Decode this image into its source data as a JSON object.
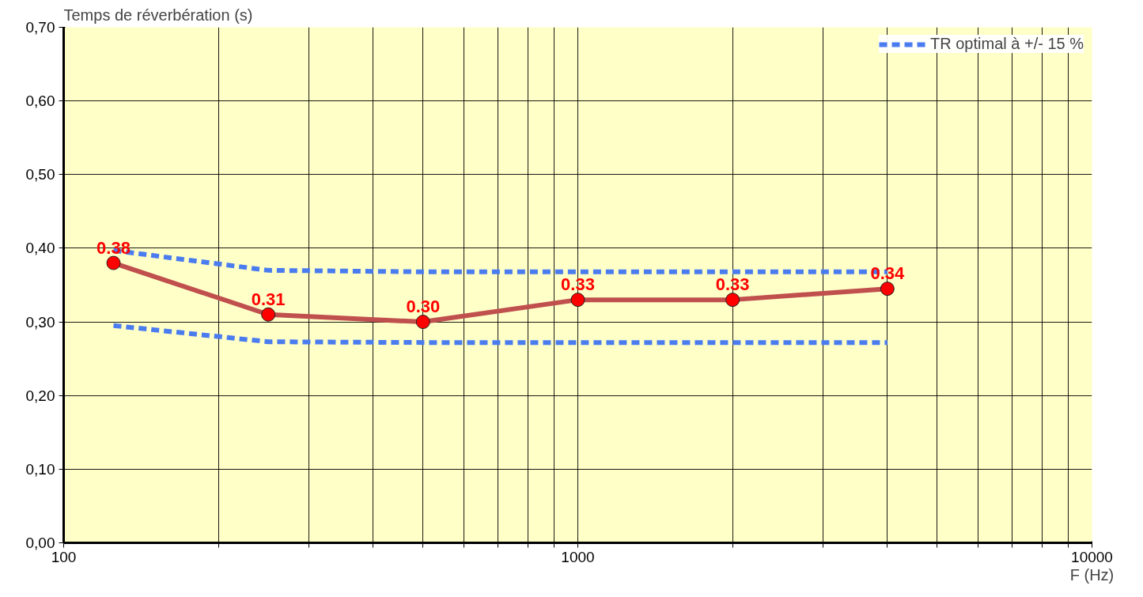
{
  "chart_data": {
    "type": "line",
    "xlabel": "F (Hz)",
    "ylabel": "Temps de réverbération (s)",
    "log": "x",
    "grid": true,
    "legend": "top right",
    "xlim": [
      100,
      10000
    ],
    "ylim": [
      0,
      0.7
    ],
    "xticks": [
      100,
      {
        "value": 200,
        "label": null
      },
      {
        "value": 300,
        "label": null
      },
      {
        "value": 400,
        "label": null
      },
      {
        "value": 500,
        "label": null
      },
      {
        "value": 600,
        "label": null
      },
      {
        "value": 700,
        "label": null
      },
      {
        "value": 800,
        "label": null
      },
      {
        "value": 900,
        "label": null
      },
      1000,
      {
        "value": 2000,
        "label": null
      },
      {
        "value": 3000,
        "label": null
      },
      {
        "value": 4000,
        "label": null
      },
      {
        "value": 5000,
        "label": null
      },
      {
        "value": 6000,
        "label": null
      },
      {
        "value": 7000,
        "label": null
      },
      {
        "value": 8000,
        "label": null
      },
      {
        "value": 9000,
        "label": null
      },
      10000
    ],
    "yticks": [
      {
        "value": 0,
        "label": "0,00"
      },
      {
        "value": 0.1,
        "label": "0,10"
      },
      {
        "value": 0.2,
        "label": "0,20"
      },
      {
        "value": 0.3,
        "label": "0,30"
      },
      {
        "value": 0.4,
        "label": "0,40"
      },
      {
        "value": 0.5,
        "label": "0,50"
      },
      {
        "value": 0.6,
        "label": "0,60"
      },
      {
        "value": 0.7,
        "label": "0,70"
      }
    ],
    "series": [
      {
        "color": "#c0504d",
        "marker": "circle",
        "x": [
          125,
          250,
          500,
          1000,
          2000,
          4000
        ],
        "values": [
          0.38,
          0.31,
          0.3,
          0.33,
          0.33,
          0.345
        ],
        "value_labels": [
          "0.38",
          "0.31",
          "0.30",
          "0.33",
          "0.33",
          "0.34"
        ]
      },
      {
        "name": "TR optimal à +/- 15 %",
        "color": "#4a7cf0",
        "line_style": "dashed",
        "x": [
          125,
          250,
          500,
          1000,
          2000,
          4000
        ],
        "values": [
          0.397,
          0.37,
          0.368,
          0.368,
          0.368,
          0.368
        ]
      },
      {
        "color": "#4a7cf0",
        "line_style": "dashed",
        "x": [
          125,
          250,
          500,
          1000,
          2000,
          4000
        ],
        "values": [
          0.295,
          0.273,
          0.272,
          0.272,
          0.272,
          0.272
        ]
      }
    ]
  }
}
